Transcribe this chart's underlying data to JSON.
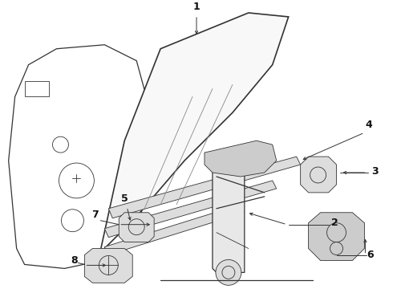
{
  "background_color": "#ffffff",
  "line_color": "#333333",
  "label_color": "#111111",
  "figsize": [
    4.9,
    3.6
  ],
  "dpi": 100
}
